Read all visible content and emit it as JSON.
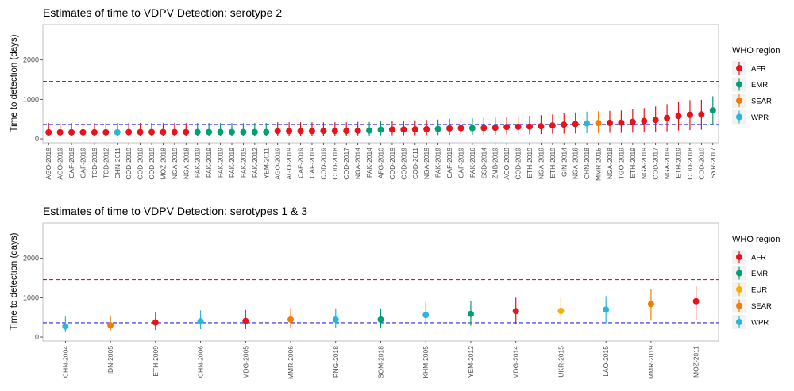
{
  "chart_data": [
    {
      "type": "scatter",
      "title": "Estimates of time to VDPV Detection: serotype 2",
      "xlabel": "",
      "ylabel": "Time to detection (days)",
      "ylim": [
        -100,
        2900
      ],
      "yticks": [
        0,
        1000,
        2000
      ],
      "reference_lines": [
        365,
        1460
      ],
      "grid": false,
      "legend": {
        "title": "WHO region",
        "placement": "right",
        "entries": [
          {
            "name": "AFR",
            "color": "#e8121b"
          },
          {
            "name": "EMR",
            "color": "#009e73"
          },
          {
            "name": "SEAR",
            "color": "#f57c00"
          },
          {
            "name": "WPR",
            "color": "#29b6d8"
          }
        ]
      },
      "points": [
        {
          "label": "AGO-2019",
          "region": "AFR",
          "y": 165,
          "lo": 70,
          "hi": 400
        },
        {
          "label": "AGO-2019",
          "region": "AFR",
          "y": 165,
          "lo": 70,
          "hi": 400
        },
        {
          "label": "CAF-2019",
          "region": "AFR",
          "y": 165,
          "lo": 70,
          "hi": 400
        },
        {
          "label": "CAF-2019",
          "region": "AFR",
          "y": 165,
          "lo": 70,
          "hi": 400
        },
        {
          "label": "TCD-2019",
          "region": "AFR",
          "y": 165,
          "lo": 70,
          "hi": 400
        },
        {
          "label": "TCD-2012",
          "region": "AFR",
          "y": 165,
          "lo": 70,
          "hi": 400
        },
        {
          "label": "CHN-2011",
          "region": "WPR",
          "y": 165,
          "lo": 70,
          "hi": 400
        },
        {
          "label": "COD-2019",
          "region": "AFR",
          "y": 170,
          "lo": 70,
          "hi": 400
        },
        {
          "label": "COD-2019",
          "region": "AFR",
          "y": 170,
          "lo": 70,
          "hi": 400
        },
        {
          "label": "COD-2019",
          "region": "AFR",
          "y": 170,
          "lo": 70,
          "hi": 400
        },
        {
          "label": "MOZ-2018",
          "region": "AFR",
          "y": 170,
          "lo": 70,
          "hi": 400
        },
        {
          "label": "NGA-2019",
          "region": "AFR",
          "y": 170,
          "lo": 70,
          "hi": 400
        },
        {
          "label": "NGA-2018",
          "region": "AFR",
          "y": 170,
          "lo": 70,
          "hi": 400
        },
        {
          "label": "PAK-2019",
          "region": "EMR",
          "y": 170,
          "lo": 70,
          "hi": 400
        },
        {
          "label": "PAK-2019",
          "region": "EMR",
          "y": 170,
          "lo": 70,
          "hi": 400
        },
        {
          "label": "PAK-2019",
          "region": "EMR",
          "y": 170,
          "lo": 70,
          "hi": 400
        },
        {
          "label": "PAK-2019",
          "region": "EMR",
          "y": 170,
          "lo": 70,
          "hi": 400
        },
        {
          "label": "PAK-2015",
          "region": "EMR",
          "y": 170,
          "lo": 70,
          "hi": 400
        },
        {
          "label": "PAK-2012",
          "region": "EMR",
          "y": 170,
          "lo": 70,
          "hi": 400
        },
        {
          "label": "YEM-2011",
          "region": "EMR",
          "y": 170,
          "lo": 70,
          "hi": 400
        },
        {
          "label": "AGO-2019",
          "region": "AFR",
          "y": 195,
          "lo": 80,
          "hi": 420
        },
        {
          "label": "AGO-2019",
          "region": "AFR",
          "y": 195,
          "lo": 80,
          "hi": 420
        },
        {
          "label": "CAF-2019",
          "region": "AFR",
          "y": 195,
          "lo": 80,
          "hi": 420
        },
        {
          "label": "CAF-2019",
          "region": "AFR",
          "y": 195,
          "lo": 80,
          "hi": 420
        },
        {
          "label": "COD-2019",
          "region": "AFR",
          "y": 200,
          "lo": 80,
          "hi": 420
        },
        {
          "label": "COD-2018",
          "region": "AFR",
          "y": 200,
          "lo": 80,
          "hi": 420
        },
        {
          "label": "COD-2017",
          "region": "AFR",
          "y": 200,
          "lo": 80,
          "hi": 420
        },
        {
          "label": "NGA-2014",
          "region": "AFR",
          "y": 205,
          "lo": 85,
          "hi": 430
        },
        {
          "label": "PAK-2014",
          "region": "EMR",
          "y": 210,
          "lo": 85,
          "hi": 430
        },
        {
          "label": "AFG-2010",
          "region": "EMR",
          "y": 230,
          "lo": 90,
          "hi": 450
        },
        {
          "label": "COD-2019",
          "region": "AFR",
          "y": 235,
          "lo": 90,
          "hi": 460
        },
        {
          "label": "COD-2019",
          "region": "AFR",
          "y": 235,
          "lo": 90,
          "hi": 460
        },
        {
          "label": "COD-2011",
          "region": "AFR",
          "y": 240,
          "lo": 90,
          "hi": 470
        },
        {
          "label": "NGA-2019",
          "region": "AFR",
          "y": 245,
          "lo": 95,
          "hi": 480
        },
        {
          "label": "PAK-2019",
          "region": "EMR",
          "y": 250,
          "lo": 95,
          "hi": 490
        },
        {
          "label": "CAF-2019",
          "region": "AFR",
          "y": 265,
          "lo": 100,
          "hi": 510
        },
        {
          "label": "CAF-2019",
          "region": "AFR",
          "y": 270,
          "lo": 100,
          "hi": 520
        },
        {
          "label": "PAK-2016",
          "region": "EMR",
          "y": 270,
          "lo": 100,
          "hi": 520
        },
        {
          "label": "SSD-2014",
          "region": "AFR",
          "y": 275,
          "lo": 105,
          "hi": 530
        },
        {
          "label": "ZMB-2019",
          "region": "AFR",
          "y": 280,
          "lo": 105,
          "hi": 540
        },
        {
          "label": "AGO-2019",
          "region": "AFR",
          "y": 300,
          "lo": 110,
          "hi": 560
        },
        {
          "label": "COD-2019",
          "region": "AFR",
          "y": 305,
          "lo": 110,
          "hi": 570
        },
        {
          "label": "ETH-2019",
          "region": "AFR",
          "y": 310,
          "lo": 115,
          "hi": 580
        },
        {
          "label": "NGA-2019",
          "region": "AFR",
          "y": 320,
          "lo": 120,
          "hi": 600
        },
        {
          "label": "ETH-2019",
          "region": "AFR",
          "y": 340,
          "lo": 125,
          "hi": 620
        },
        {
          "label": "GIN-2014",
          "region": "AFR",
          "y": 360,
          "lo": 130,
          "hi": 650
        },
        {
          "label": "NGA-2016",
          "region": "AFR",
          "y": 375,
          "lo": 135,
          "hi": 670
        },
        {
          "label": "CHN-2018",
          "region": "WPR",
          "y": 390,
          "lo": 140,
          "hi": 690
        },
        {
          "label": "MMR-2015",
          "region": "SEAR",
          "y": 400,
          "lo": 145,
          "hi": 700
        },
        {
          "label": "NGA-2018",
          "region": "AFR",
          "y": 405,
          "lo": 150,
          "hi": 710
        },
        {
          "label": "TGO-2019",
          "region": "AFR",
          "y": 410,
          "lo": 150,
          "hi": 720
        },
        {
          "label": "ETH-2019",
          "region": "AFR",
          "y": 430,
          "lo": 155,
          "hi": 750
        },
        {
          "label": "NGA-2019",
          "region": "AFR",
          "y": 450,
          "lo": 160,
          "hi": 780
        },
        {
          "label": "COD-2017",
          "region": "AFR",
          "y": 480,
          "lo": 170,
          "hi": 820
        },
        {
          "label": "NGA-2019",
          "region": "AFR",
          "y": 530,
          "lo": 190,
          "hi": 880
        },
        {
          "label": "ETH-2019",
          "region": "AFR",
          "y": 580,
          "lo": 210,
          "hi": 940
        },
        {
          "label": "COD-2018",
          "region": "AFR",
          "y": 610,
          "lo": 220,
          "hi": 980
        },
        {
          "label": "COD-2010",
          "region": "AFR",
          "y": 620,
          "lo": 230,
          "hi": 990
        },
        {
          "label": "SYR-2017",
          "region": "EMR",
          "y": 720,
          "lo": 380,
          "hi": 1080
        }
      ]
    },
    {
      "type": "scatter",
      "title": "Estimates of time to VDPV Detection: serotypes 1 & 3",
      "xlabel": "",
      "ylabel": "Time to detection (days)",
      "ylim": [
        -100,
        2900
      ],
      "yticks": [
        0,
        1000,
        2000
      ],
      "reference_lines": [
        365,
        1460
      ],
      "grid": false,
      "legend": {
        "title": "WHO region",
        "placement": "right",
        "entries": [
          {
            "name": "AFR",
            "color": "#e8121b"
          },
          {
            "name": "EMR",
            "color": "#009e73"
          },
          {
            "name": "EUR",
            "color": "#f5b000"
          },
          {
            "name": "SEAR",
            "color": "#f57c00"
          },
          {
            "name": "WPR",
            "color": "#29b6d8"
          }
        ]
      },
      "points": [
        {
          "label": "CHN-2004",
          "region": "WPR",
          "y": 270,
          "lo": 140,
          "hi": 520
        },
        {
          "label": "IDN-2005",
          "region": "SEAR",
          "y": 300,
          "lo": 160,
          "hi": 550
        },
        {
          "label": "ETH-2009",
          "region": "AFR",
          "y": 370,
          "lo": 180,
          "hi": 640
        },
        {
          "label": "CHN-2006",
          "region": "WPR",
          "y": 400,
          "lo": 200,
          "hi": 680
        },
        {
          "label": "MDG-2005",
          "region": "AFR",
          "y": 410,
          "lo": 200,
          "hi": 690
        },
        {
          "label": "MMR-2006",
          "region": "SEAR",
          "y": 445,
          "lo": 220,
          "hi": 730
        },
        {
          "label": "PNG-2018",
          "region": "WPR",
          "y": 445,
          "lo": 220,
          "hi": 730
        },
        {
          "label": "SOM-2018",
          "region": "EMR",
          "y": 445,
          "lo": 220,
          "hi": 730
        },
        {
          "label": "KHM-2005",
          "region": "WPR",
          "y": 560,
          "lo": 280,
          "hi": 880
        },
        {
          "label": "YEM-2012",
          "region": "EMR",
          "y": 590,
          "lo": 290,
          "hi": 920
        },
        {
          "label": "MDG-2014",
          "region": "AFR",
          "y": 660,
          "lo": 330,
          "hi": 1000
        },
        {
          "label": "UKR-2015",
          "region": "EUR",
          "y": 665,
          "lo": 330,
          "hi": 1000
        },
        {
          "label": "LAO-2015",
          "region": "WPR",
          "y": 700,
          "lo": 350,
          "hi": 1040
        },
        {
          "label": "MMR-2019",
          "region": "SEAR",
          "y": 840,
          "lo": 420,
          "hi": 1230
        },
        {
          "label": "MOZ-2011",
          "region": "AFR",
          "y": 910,
          "lo": 450,
          "hi": 1300
        }
      ]
    }
  ]
}
